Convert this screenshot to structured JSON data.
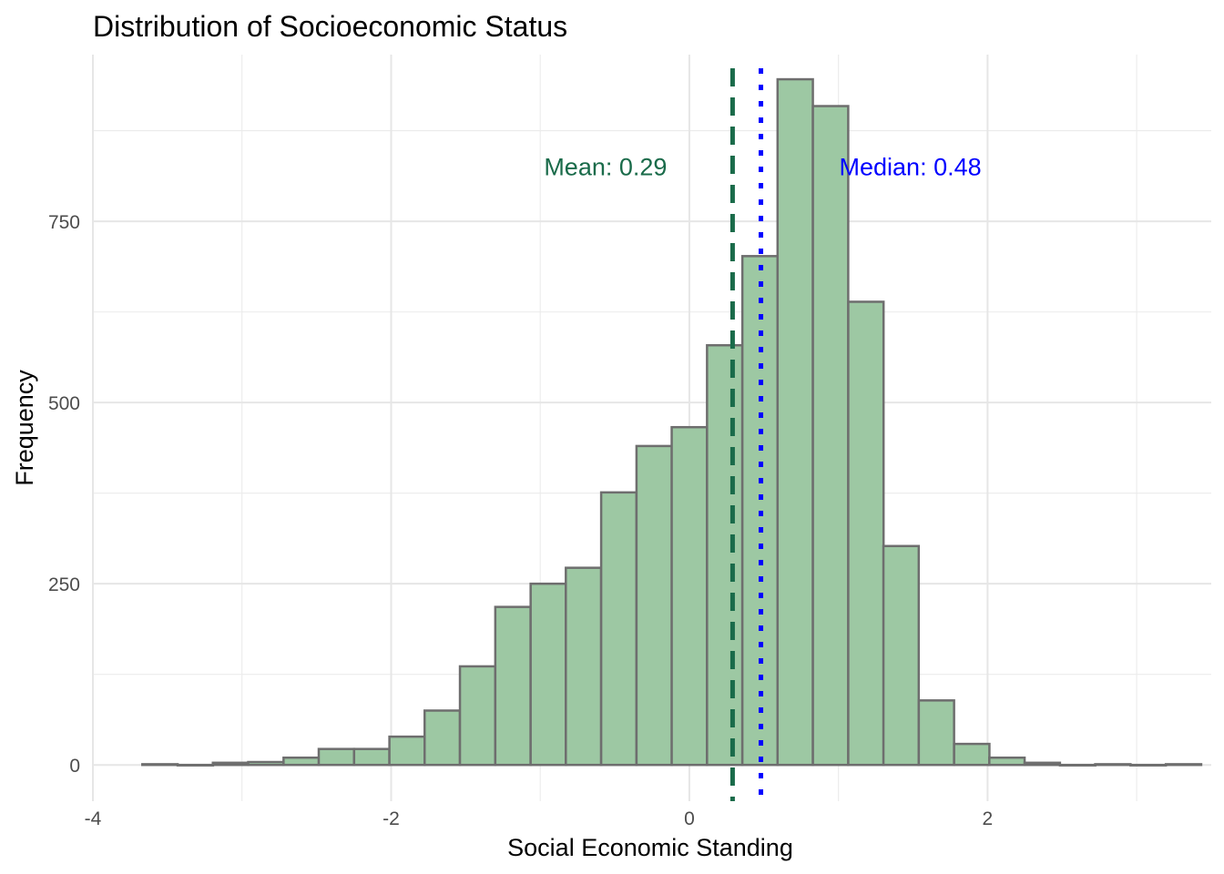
{
  "chart_data": {
    "type": "bar",
    "title": "Distribution of Socioeconomic Status",
    "xlabel": "Social Economic Standing",
    "ylabel": "Frequency",
    "xlim": [
      -4,
      3.5
    ],
    "ylim": [
      -50,
      980
    ],
    "x_ticks": [
      -4,
      -2,
      0,
      2
    ],
    "x_tick_labels": [
      "-4",
      "-2",
      "0",
      "2"
    ],
    "y_ticks": [
      0,
      250,
      500,
      750
    ],
    "y_tick_labels": [
      "0",
      "250",
      "500",
      "750"
    ],
    "grid": true,
    "bin_width": 0.2368,
    "bin_centers": [
      -3.55,
      -3.313,
      -3.077,
      -2.84,
      -2.603,
      -2.367,
      -2.13,
      -1.893,
      -1.657,
      -1.42,
      -1.183,
      -0.946,
      -0.71,
      -0.473,
      -0.236,
      0.0,
      0.237,
      0.474,
      0.71,
      0.947,
      1.184,
      1.42,
      1.657,
      1.894,
      2.13,
      2.367,
      2.604,
      2.84,
      3.077,
      3.314
    ],
    "values": [
      1,
      0,
      3,
      4,
      10,
      22,
      22,
      39,
      75,
      136,
      218,
      250,
      272,
      376,
      440,
      466,
      579,
      702,
      946,
      909,
      639,
      302,
      89,
      29,
      10,
      3,
      0,
      1,
      0,
      1
    ],
    "bar_fill": "#9dc8a3",
    "bar_stroke": "#6e6e6e",
    "reference_lines": [
      {
        "value": 0.29,
        "label": "Mean: 0.29",
        "color": "#1a6b4a",
        "style": "dashed"
      },
      {
        "value": 0.48,
        "label": "Median: 0.48",
        "color": "#0000ff",
        "style": "dotted"
      }
    ],
    "annotation_y": 825
  }
}
